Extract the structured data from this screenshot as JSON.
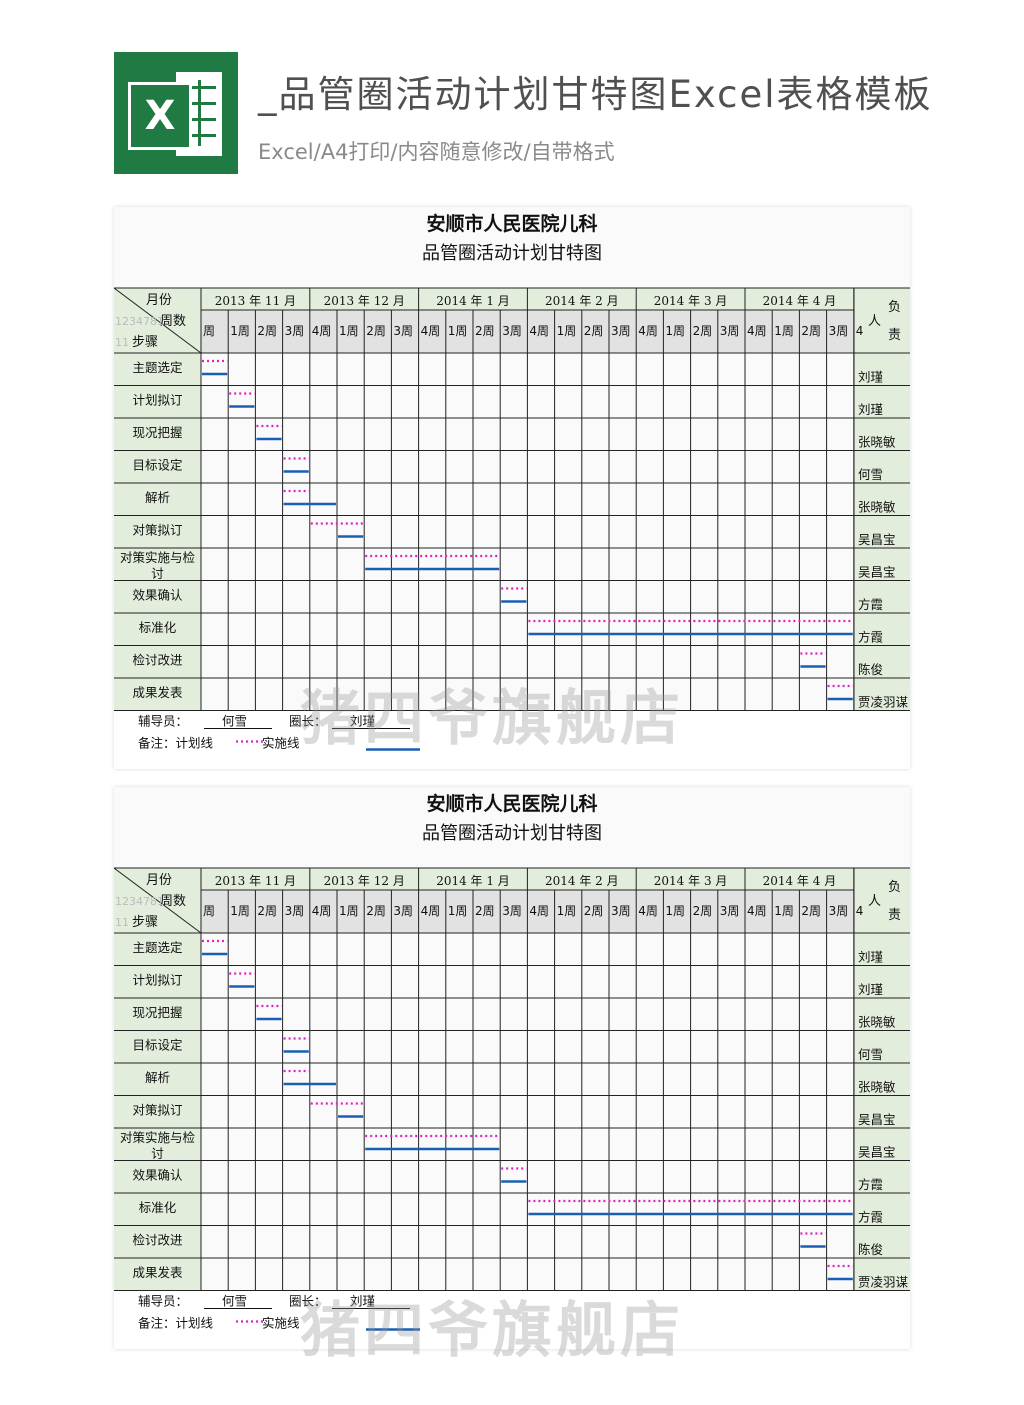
{
  "header": {
    "title": "_品管圈活动计划甘特图Excel表格模板",
    "subtitle": "Excel/A4打印/内容随意修改/自带格式",
    "logo_letter": "X"
  },
  "sheet": {
    "hospital": "安顺市人民医院儿科",
    "chart_title": "品管圈活动计划甘特图",
    "corner": {
      "month": "月份",
      "week": "周数",
      "step": "步骤",
      "faint": "1234781",
      "faint2": "11"
    },
    "months": [
      "2013 年 11 月",
      "2013 年 12 月",
      "2014 年 1 月",
      "2014 年 2 月",
      "2014 年 3 月",
      "2014 年 4 月"
    ],
    "week_labels": [
      "周",
      "1周",
      "2周",
      "3周",
      "4周",
      "1周",
      "2周",
      "3周",
      "4周",
      "1周",
      "2周",
      "3周",
      "4周",
      "1周",
      "2周",
      "3周",
      "4周",
      "1周",
      "2周",
      "3周",
      "4周",
      "1周",
      "2周",
      "3周",
      "4"
    ],
    "owner_header": [
      "负",
      "人",
      "责"
    ],
    "steps": [
      {
        "name": "主题选定",
        "owner": "刘瑾",
        "plan": [
          0,
          1
        ],
        "actual": [
          0,
          1
        ]
      },
      {
        "name": "计划拟订",
        "owner": "刘瑾",
        "plan": [
          1,
          2
        ],
        "actual": [
          1,
          2
        ]
      },
      {
        "name": "现况把握",
        "owner": "张晓敏",
        "plan": [
          2,
          3
        ],
        "actual": [
          2,
          3
        ]
      },
      {
        "name": "目标设定",
        "owner": "何雪",
        "plan": [
          3,
          4
        ],
        "actual": [
          3,
          4
        ]
      },
      {
        "name": "解析",
        "owner": "张晓敏",
        "plan": [
          3,
          4
        ],
        "actual": [
          3,
          5
        ]
      },
      {
        "name": "对策拟订",
        "owner": "吴昌宝",
        "plan": [
          4,
          6
        ],
        "actual": [
          5,
          6
        ]
      },
      {
        "name": "对策实施与检讨",
        "owner": "吴昌宝",
        "plan": [
          6,
          11
        ],
        "actual": [
          6,
          11
        ]
      },
      {
        "name": "效果确认",
        "owner": "方霞",
        "plan": [
          11,
          12
        ],
        "actual": [
          11,
          12
        ]
      },
      {
        "name": "标准化",
        "owner": "方霞",
        "plan": [
          12,
          24
        ],
        "actual": [
          12,
          24
        ]
      },
      {
        "name": "检讨改进",
        "owner": "陈俊",
        "plan": [
          22,
          23
        ],
        "actual": [
          22,
          23
        ]
      },
      {
        "name": "成果发表",
        "owner": "贾凌羽谋",
        "plan": [
          23,
          24
        ],
        "actual": [
          23,
          24
        ]
      }
    ],
    "footer": {
      "advisor_label": "辅导员：",
      "advisor": "何雪",
      "leader_label": "圈长：",
      "leader": "刘瑾",
      "note_label": "备注：计划线",
      "actual_label": "实施线"
    },
    "colors": {
      "plan": "#e020c0",
      "actual": "#1a5fb4",
      "label_bg": "#e3eddc",
      "week_bg": "#e2e2e2",
      "grid": "#222222"
    }
  },
  "watermark": "猪四爷旗舰店"
}
